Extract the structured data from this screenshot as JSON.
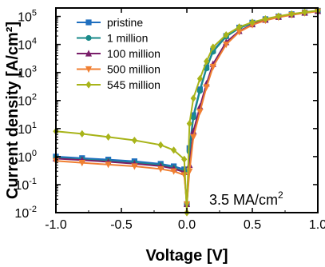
{
  "chart_data": {
    "type": "line",
    "xlabel": "Voltage [V]",
    "ylabel": "Current density [A/cm²]",
    "y_scale": "log",
    "xlim": [
      -1.0,
      1.0
    ],
    "ylim": [
      0.01,
      200000
    ],
    "x_ticks": [
      "-1.0",
      "-0.5",
      "0.0",
      "0.5",
      "1.0"
    ],
    "y_ticks": [
      {
        "base": "10",
        "exp": "-2",
        "value": 0.01
      },
      {
        "base": "10",
        "exp": "-1",
        "value": 0.1
      },
      {
        "base": "10",
        "exp": "0",
        "value": 1
      },
      {
        "base": "10",
        "exp": "1",
        "value": 10
      },
      {
        "base": "10",
        "exp": "2",
        "value": 100
      },
      {
        "base": "10",
        "exp": "3",
        "value": 1000
      },
      {
        "base": "10",
        "exp": "4",
        "value": 10000
      },
      {
        "base": "10",
        "exp": "5",
        "value": 100000
      }
    ],
    "legend_position": "top-left",
    "grid": false,
    "annotation": {
      "text": "3.5 MA/cm",
      "superscript": "2"
    },
    "series": [
      {
        "name": "pristine",
        "color": "#1f6fbf",
        "marker": "square",
        "x": [
          -1.0,
          -0.8,
          -0.6,
          -0.4,
          -0.2,
          -0.1,
          -0.02,
          0.0,
          0.02,
          0.05,
          0.1,
          0.15,
          0.2,
          0.3,
          0.4,
          0.5,
          0.6,
          0.7,
          0.8,
          0.9,
          1.0
        ],
        "y": [
          1.0,
          0.88,
          0.78,
          0.68,
          0.55,
          0.45,
          0.35,
          0.02,
          2,
          30,
          250,
          1500,
          6000,
          20000,
          40000,
          60000,
          80000,
          100000,
          120000,
          140000,
          160000
        ]
      },
      {
        "name": "1 million",
        "color": "#1a8a8a",
        "marker": "circle",
        "x": [
          -1.0,
          -0.8,
          -0.6,
          -0.4,
          -0.2,
          -0.1,
          -0.02,
          0.0,
          0.02,
          0.05,
          0.1,
          0.15,
          0.2,
          0.3,
          0.4,
          0.5,
          0.6,
          0.7,
          0.8,
          0.9,
          1.0
        ],
        "y": [
          0.9,
          0.78,
          0.7,
          0.6,
          0.5,
          0.4,
          0.3,
          0.02,
          1.5,
          25,
          220,
          1400,
          5500,
          19000,
          38000,
          58000,
          78000,
          98000,
          118000,
          138000,
          158000
        ]
      },
      {
        "name": "100 million",
        "color": "#7a1f6a",
        "marker": "triangle-up",
        "x": [
          -1.0,
          -0.8,
          -0.6,
          -0.4,
          -0.2,
          -0.1,
          -0.02,
          0.0,
          0.02,
          0.05,
          0.1,
          0.15,
          0.2,
          0.3,
          0.4,
          0.5,
          0.6,
          0.7,
          0.8,
          0.9,
          1.0
        ],
        "y": [
          0.85,
          0.75,
          0.65,
          0.56,
          0.46,
          0.37,
          0.28,
          0.02,
          0.5,
          8,
          60,
          400,
          2000,
          12000,
          30000,
          52000,
          75000,
          95000,
          115000,
          135000,
          155000
        ]
      },
      {
        "name": "500 million",
        "color": "#f07f32",
        "marker": "triangle-down",
        "x": [
          -1.0,
          -0.8,
          -0.6,
          -0.4,
          -0.2,
          -0.1,
          -0.02,
          0.0,
          0.02,
          0.05,
          0.1,
          0.15,
          0.2,
          0.3,
          0.4,
          0.5,
          0.6,
          0.7,
          0.8,
          0.9,
          1.0
        ],
        "y": [
          0.7,
          0.6,
          0.52,
          0.45,
          0.36,
          0.3,
          0.22,
          0.02,
          0.3,
          5,
          40,
          300,
          1600,
          10000,
          28000,
          50000,
          72000,
          93000,
          113000,
          133000,
          153000
        ]
      },
      {
        "name": "545 million",
        "color": "#a8b41a",
        "marker": "diamond",
        "x": [
          -1.0,
          -0.8,
          -0.6,
          -0.4,
          -0.2,
          -0.1,
          -0.02,
          0.0,
          0.02,
          0.05,
          0.1,
          0.15,
          0.2,
          0.3,
          0.4,
          0.5,
          0.6,
          0.7,
          0.8,
          0.9,
          1.0
        ],
        "y": [
          8.0,
          6.5,
          5.0,
          3.8,
          2.6,
          1.7,
          0.8,
          0.01,
          15,
          120,
          600,
          2500,
          8000,
          22000,
          42000,
          62000,
          82000,
          102000,
          122000,
          142000,
          162000
        ]
      }
    ]
  }
}
